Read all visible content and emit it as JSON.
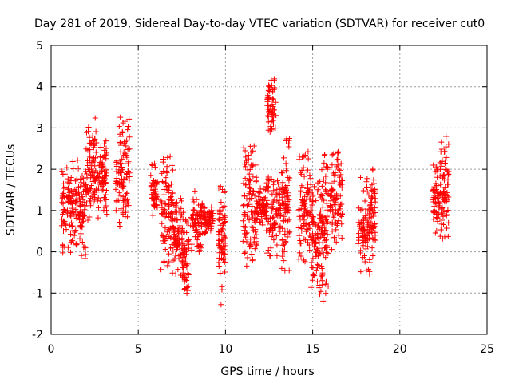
{
  "chart_data": {
    "type": "scatter",
    "title": "Day 281 of 2019, Sidereal Day-to-day VTEC variation (SDTVAR) for receiver cut0",
    "xlabel": "GPS time / hours",
    "ylabel": "SDTVAR / TECUs",
    "xlim": [
      0,
      25
    ],
    "ylim": [
      -2,
      5
    ],
    "xticks": [
      0,
      5,
      10,
      15,
      20,
      25
    ],
    "yticks": [
      -2,
      -1,
      0,
      1,
      2,
      3,
      4,
      5
    ],
    "xtick_labels": [
      "0",
      "5",
      "10",
      "15",
      "20",
      "25"
    ],
    "ytick_labels": [
      "-2",
      "-1",
      "0",
      "1",
      "2",
      "3",
      "4",
      "5"
    ],
    "grid": true,
    "marker": "+",
    "color": "#ff0000",
    "clusters": [
      {
        "x0": 0.6,
        "x1": 1.4,
        "ymin": -0.1,
        "ymax": 2.2
      },
      {
        "x0": 1.4,
        "x1": 2.0,
        "ymin": -0.2,
        "ymax": 2.4
      },
      {
        "x0": 2.0,
        "x1": 2.6,
        "ymin": 0.7,
        "ymax": 3.35
      },
      {
        "x0": 2.6,
        "x1": 3.2,
        "ymin": 0.8,
        "ymax": 2.8
      },
      {
        "x0": 3.7,
        "x1": 4.5,
        "ymin": 0.45,
        "ymax": 3.3
      },
      {
        "x0": 5.7,
        "x1": 6.1,
        "ymin": 0.8,
        "ymax": 2.2
      },
      {
        "x0": 6.3,
        "x1": 7.0,
        "ymin": -0.6,
        "ymax": 2.55
      },
      {
        "x0": 7.0,
        "x1": 7.6,
        "ymin": -0.6,
        "ymax": 1.3
      },
      {
        "x0": 7.5,
        "x1": 7.9,
        "ymin": -1.15,
        "ymax": 0.8
      },
      {
        "x0": 8.0,
        "x1": 8.7,
        "ymin": 0.0,
        "ymax": 1.5
      },
      {
        "x0": 8.7,
        "x1": 9.3,
        "ymin": 0.4,
        "ymax": 1.1
      },
      {
        "x0": 9.6,
        "x1": 10.0,
        "ymin": -1.3,
        "ymax": 1.8
      },
      {
        "x0": 11.0,
        "x1": 11.8,
        "ymin": -0.45,
        "ymax": 2.6
      },
      {
        "x0": 11.8,
        "x1": 12.3,
        "ymin": 0.6,
        "ymax": 1.6
      },
      {
        "x0": 12.4,
        "x1": 12.9,
        "ymin": 2.9,
        "ymax": 4.2
      },
      {
        "x0": 12.3,
        "x1": 13.2,
        "ymin": -0.1,
        "ymax": 2.0
      },
      {
        "x0": 13.2,
        "x1": 13.7,
        "ymin": -0.55,
        "ymax": 2.75
      },
      {
        "x0": 14.2,
        "x1": 14.9,
        "ymin": -0.3,
        "ymax": 2.45
      },
      {
        "x0": 14.9,
        "x1": 15.4,
        "ymin": -0.9,
        "ymax": 1.7
      },
      {
        "x0": 15.4,
        "x1": 15.9,
        "ymin": -1.3,
        "ymax": 2.4
      },
      {
        "x0": 16.0,
        "x1": 16.7,
        "ymin": 0.0,
        "ymax": 2.6
      },
      {
        "x0": 17.6,
        "x1": 18.3,
        "ymin": -0.55,
        "ymax": 1.8
      },
      {
        "x0": 18.3,
        "x1": 18.6,
        "ymin": -0.2,
        "ymax": 2.05
      },
      {
        "x0": 21.9,
        "x1": 22.3,
        "ymin": 0.3,
        "ymax": 2.1
      },
      {
        "x0": 22.3,
        "x1": 22.8,
        "ymin": 0.3,
        "ymax": 2.85
      }
    ]
  }
}
